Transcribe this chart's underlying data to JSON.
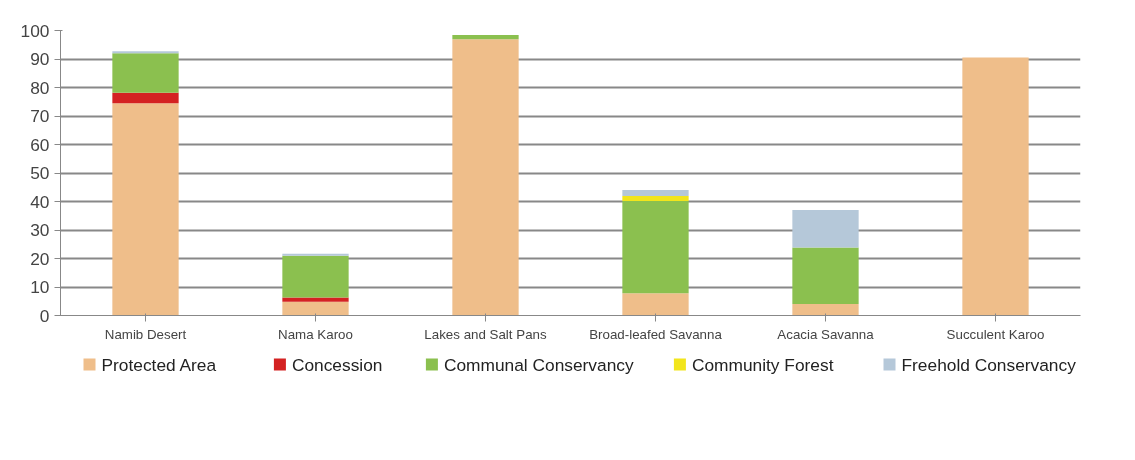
{
  "chart_data": {
    "type": "bar",
    "stacked": true,
    "categories": [
      "Namib Desert",
      "Nama Karoo",
      "Lakes and Salt Pans",
      "Broad-leafed Savanna",
      "Acacia Savanna",
      "Succulent Karoo"
    ],
    "series": [
      {
        "name": "Protected Area",
        "color": "#efbe8a",
        "values": [
          74.5,
          4.8,
          96.9,
          7.8,
          4.0,
          90.5
        ]
      },
      {
        "name": "Concession",
        "color": "#d42222",
        "values": [
          3.7,
          1.5,
          0,
          0,
          0,
          0
        ]
      },
      {
        "name": "Communal Conservancy",
        "color": "#8bc04f",
        "values": [
          13.8,
          14.7,
          1.5,
          32.4,
          19.9,
          0
        ]
      },
      {
        "name": "Community Forest",
        "color": "#f2e51c",
        "values": [
          0,
          0,
          0,
          1.7,
          0,
          0
        ]
      },
      {
        "name": "Freehold Conservancy",
        "color": "#b5c8d9",
        "values": [
          0.7,
          0.7,
          0,
          2.1,
          13.1,
          0
        ]
      }
    ],
    "ylim": [
      0,
      100
    ],
    "yticks": [
      0,
      10,
      20,
      30,
      40,
      50,
      60,
      70,
      80,
      90,
      100
    ],
    "grid": "y",
    "legend": "bottom"
  }
}
